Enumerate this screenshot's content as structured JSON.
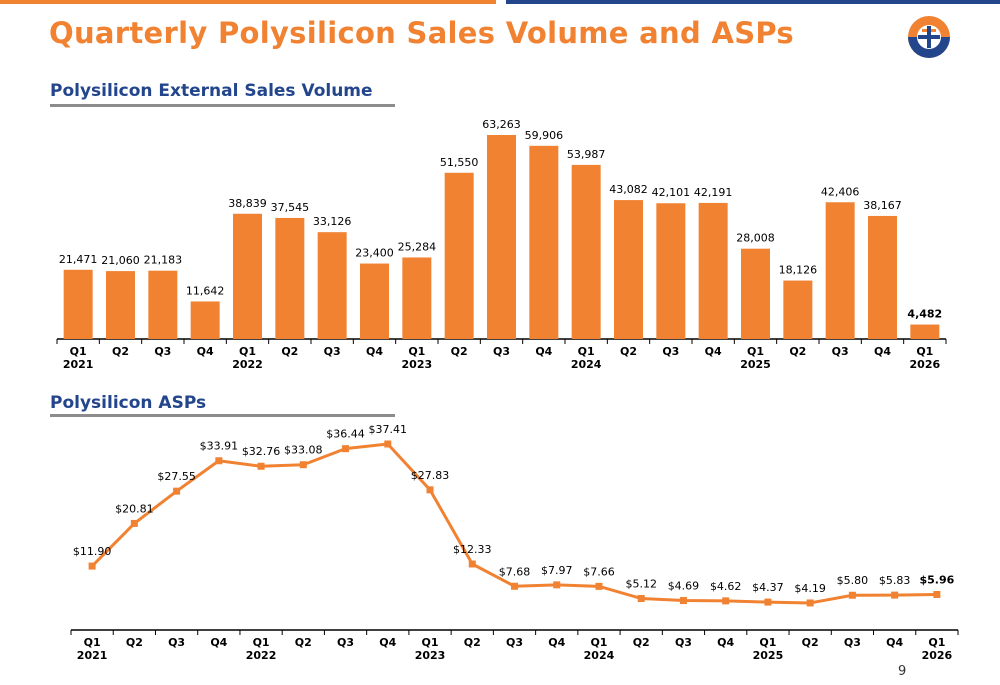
{
  "page": {
    "title": "Quarterly Polysilicon Sales Volume and ASPs",
    "page_number": "9"
  },
  "colors": {
    "accent_orange": "#F08232",
    "brand_blue": "#23458C",
    "underline_gray": "#8C8C8C"
  },
  "logo": {
    "icon": "daqo-logo-icon"
  },
  "chart_data": [
    {
      "type": "bar",
      "title": "Polysilicon External Sales Volume",
      "categories": [
        "Q1 2021",
        "Q2",
        "Q3",
        "Q4",
        "Q1 2022",
        "Q2",
        "Q3",
        "Q4",
        "Q1 2023",
        "Q2",
        "Q3",
        "Q4",
        "Q1 2024",
        "Q2",
        "Q3",
        "Q4",
        "Q1 2025",
        "Q2",
        "Q3",
        "Q4",
        "Q1 2026"
      ],
      "tick_labels": [
        {
          "q": "Q1",
          "y": "2021"
        },
        {
          "q": "Q2",
          "y": ""
        },
        {
          "q": "Q3",
          "y": ""
        },
        {
          "q": "Q4",
          "y": ""
        },
        {
          "q": "Q1",
          "y": "2022"
        },
        {
          "q": "Q2",
          "y": ""
        },
        {
          "q": "Q3",
          "y": ""
        },
        {
          "q": "Q4",
          "y": ""
        },
        {
          "q": "Q1",
          "y": "2023"
        },
        {
          "q": "Q2",
          "y": ""
        },
        {
          "q": "Q3",
          "y": ""
        },
        {
          "q": "Q4",
          "y": ""
        },
        {
          "q": "Q1",
          "y": "2024"
        },
        {
          "q": "Q2",
          "y": ""
        },
        {
          "q": "Q3",
          "y": ""
        },
        {
          "q": "Q4",
          "y": ""
        },
        {
          "q": "Q1",
          "y": "2025"
        },
        {
          "q": "Q2",
          "y": ""
        },
        {
          "q": "Q3",
          "y": ""
        },
        {
          "q": "Q4",
          "y": ""
        },
        {
          "q": "Q1",
          "y": "2026"
        }
      ],
      "values": [
        21471,
        21060,
        21183,
        11642,
        38839,
        37545,
        33126,
        23400,
        25284,
        51550,
        63263,
        59906,
        53987,
        43082,
        42101,
        42191,
        28008,
        18126,
        42406,
        38167,
        4482
      ],
      "data_labels": [
        "21,471",
        "21,060",
        "21,183",
        "11,642",
        "38,839",
        "37,545",
        "33,126",
        "23,400",
        "25,284",
        "51,550",
        "63,263",
        "59,906",
        "53,987",
        "43,082",
        "42,101",
        "42,191",
        "28,008",
        "18,126",
        "42,406",
        "38,167",
        "4,482"
      ],
      "ylim": [
        0,
        63263
      ],
      "grid": false,
      "color": "#F08232"
    },
    {
      "type": "line",
      "title": "Polysilicon ASPs",
      "categories": [
        "Q1 2021",
        "Q2",
        "Q3",
        "Q4",
        "Q1 2022",
        "Q2",
        "Q3",
        "Q4",
        "Q1 2023",
        "Q2",
        "Q3",
        "Q4",
        "Q1 2024",
        "Q2",
        "Q3",
        "Q4",
        "Q1 2025",
        "Q2",
        "Q3",
        "Q4",
        "Q1 2026"
      ],
      "tick_labels": [
        {
          "q": "Q1",
          "y": "2021"
        },
        {
          "q": "Q2",
          "y": ""
        },
        {
          "q": "Q3",
          "y": ""
        },
        {
          "q": "Q4",
          "y": ""
        },
        {
          "q": "Q1",
          "y": "2022"
        },
        {
          "q": "Q2",
          "y": ""
        },
        {
          "q": "Q3",
          "y": ""
        },
        {
          "q": "Q4",
          "y": ""
        },
        {
          "q": "Q1",
          "y": "2023"
        },
        {
          "q": "Q2",
          "y": ""
        },
        {
          "q": "Q3",
          "y": ""
        },
        {
          "q": "Q4",
          "y": ""
        },
        {
          "q": "Q1",
          "y": "2024"
        },
        {
          "q": "Q2",
          "y": ""
        },
        {
          "q": "Q3",
          "y": ""
        },
        {
          "q": "Q4",
          "y": ""
        },
        {
          "q": "Q1",
          "y": "2025"
        },
        {
          "q": "Q2",
          "y": ""
        },
        {
          "q": "Q3",
          "y": ""
        },
        {
          "q": "Q4",
          "y": ""
        },
        {
          "q": "Q1",
          "y": "2026"
        }
      ],
      "values": [
        11.9,
        20.81,
        27.55,
        33.91,
        32.76,
        33.08,
        36.44,
        37.41,
        27.83,
        12.33,
        7.68,
        7.97,
        7.66,
        5.12,
        4.69,
        4.62,
        4.37,
        4.19,
        5.8,
        5.83,
        5.96
      ],
      "data_labels": [
        "$11.90",
        "$20.81",
        "$27.55",
        "$33.91",
        "$32.76",
        "$33.08",
        "$36.44",
        "$37.41",
        "$27.83",
        "$12.33",
        "$7.68",
        "$7.97",
        "$7.66",
        "$5.12",
        "$4.69",
        "$4.62",
        "$4.37",
        "$4.19",
        "$5.80",
        "$5.83",
        "$5.96"
      ],
      "ylim": [
        0,
        37.41
      ],
      "grid": false,
      "color": "#F08232"
    }
  ]
}
